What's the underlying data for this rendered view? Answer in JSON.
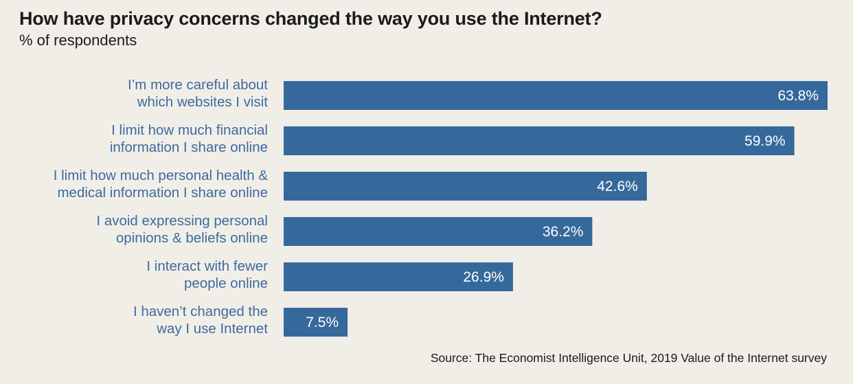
{
  "chart_data": {
    "type": "bar",
    "orientation": "horizontal",
    "title": "How have privacy concerns changed the way you use the Internet?",
    "subtitle": "% of respondents",
    "categories": [
      [
        "I’m more careful about",
        "which websites I visit"
      ],
      [
        "I limit how much financial",
        "information I share online"
      ],
      [
        "I limit how much personal health &",
        "medical information I share online"
      ],
      [
        "I avoid expressing personal",
        "opinions & beliefs online"
      ],
      [
        "I interact with fewer",
        "people online"
      ],
      [
        "I haven’t changed the",
        "way I use Internet"
      ]
    ],
    "values": [
      63.8,
      59.9,
      42.6,
      36.2,
      26.9,
      7.5
    ],
    "value_labels": [
      "63.8%",
      "59.9%",
      "42.6%",
      "36.2%",
      "26.9%",
      "7.5%"
    ],
    "xlim": [
      0,
      63.8
    ],
    "bar_color": "#35699c",
    "label_color": "#3d6b9e",
    "grid": false,
    "legend": "none",
    "source": "Source: The Economist Intelligence Unit, 2019 Value of the Internet survey"
  }
}
